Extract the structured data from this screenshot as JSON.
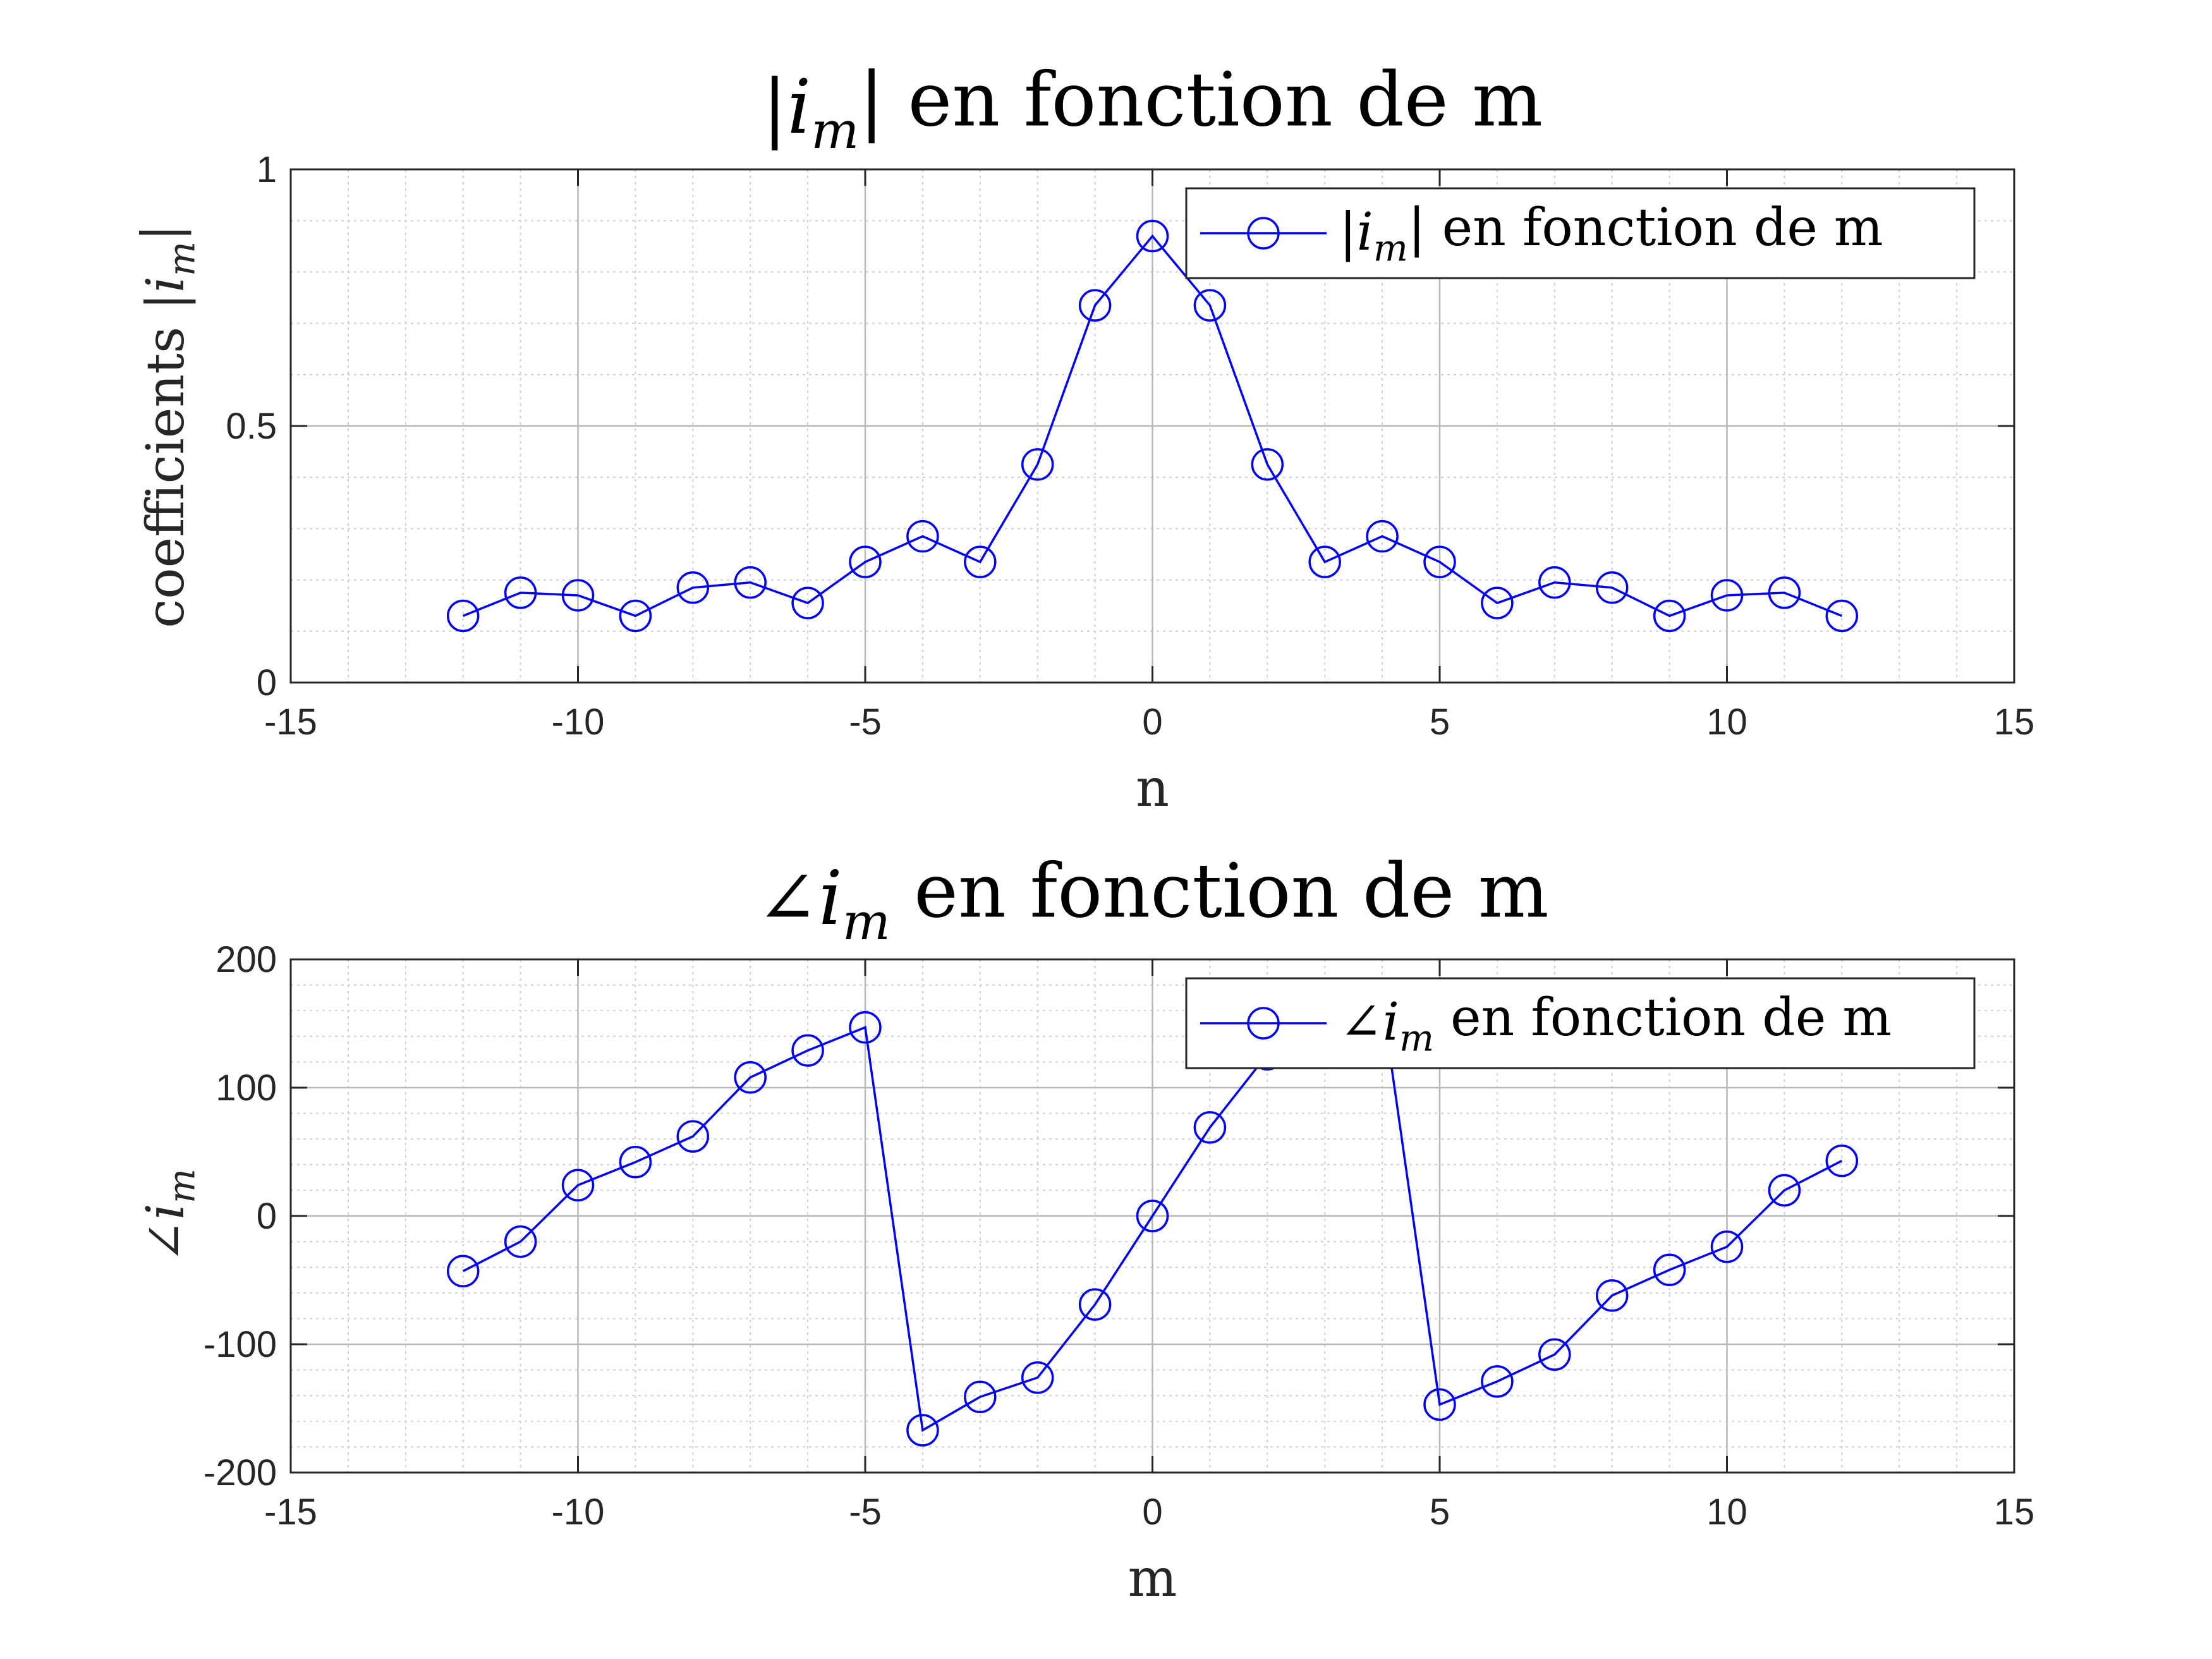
{
  "chart_data": [
    {
      "type": "line",
      "title": "|i_m| en fonction de m",
      "title_parts": {
        "pre": "|",
        "var": "i",
        "sub": "m",
        "post": "| en fonction de m"
      },
      "xlabel": "n",
      "ylabel": "coefficients |i_m|",
      "ylabel_parts": {
        "pre": "coefficients |",
        "var": "i",
        "sub": "m",
        "post": "|"
      },
      "xlim": [
        -15,
        15
      ],
      "ylim": [
        0,
        1
      ],
      "xticks": [
        -15,
        -10,
        -5,
        0,
        5,
        10,
        15
      ],
      "yticks": [
        0,
        0.5,
        1
      ],
      "xtick_labels": [
        "-15",
        "-10",
        "-5",
        "0",
        "5",
        "10",
        "15"
      ],
      "ytick_labels": [
        "0",
        "0.5",
        "1"
      ],
      "grid": true,
      "minor_grid": true,
      "legend_position": "top-right",
      "series": [
        {
          "name": "|i_m| en fonction de m",
          "legend_parts": {
            "pre": "|",
            "var": "i",
            "sub": "m",
            "post": "| en fonction de m"
          },
          "color": "#0000ff",
          "marker": "circle",
          "x": [
            -12,
            -11,
            -10,
            -9,
            -8,
            -7,
            -6,
            -5,
            -4,
            -3,
            -2,
            -1,
            0,
            1,
            2,
            3,
            4,
            5,
            6,
            7,
            8,
            9,
            10,
            11,
            12
          ],
          "y": [
            0.13,
            0.175,
            0.17,
            0.13,
            0.185,
            0.195,
            0.155,
            0.235,
            0.285,
            0.235,
            0.425,
            0.735,
            0.87,
            0.735,
            0.425,
            0.235,
            0.285,
            0.235,
            0.155,
            0.195,
            0.185,
            0.13,
            0.17,
            0.175,
            0.13
          ]
        }
      ]
    },
    {
      "type": "line",
      "title": "∠i_m en fonction de m",
      "title_parts": {
        "pre": "∠",
        "var": "i",
        "sub": "m",
        "post": " en fonction de m"
      },
      "xlabel": "m",
      "ylabel": "∠i_m",
      "ylabel_parts": {
        "pre": "∠",
        "var": "i",
        "sub": "m",
        "post": ""
      },
      "xlim": [
        -15,
        15
      ],
      "ylim": [
        -200,
        200
      ],
      "xticks": [
        -15,
        -10,
        -5,
        0,
        5,
        10,
        15
      ],
      "yticks": [
        -200,
        -100,
        0,
        100,
        200
      ],
      "xtick_labels": [
        "-15",
        "-10",
        "-5",
        "0",
        "5",
        "10",
        "15"
      ],
      "ytick_labels": [
        "-200",
        "-100",
        "0",
        "100",
        "200"
      ],
      "grid": true,
      "minor_grid": true,
      "legend_position": "top-right",
      "series": [
        {
          "name": "∠i_m en fonction de m",
          "legend_parts": {
            "pre": "∠",
            "var": "i",
            "sub": "m",
            "post": " en fonction de m"
          },
          "color": "#0000ff",
          "marker": "circle",
          "x": [
            -12,
            -11,
            -10,
            -9,
            -8,
            -7,
            -6,
            -5,
            -4,
            -3,
            -2,
            -1,
            0,
            1,
            2,
            3,
            4,
            5,
            6,
            7,
            8,
            9,
            10,
            11,
            12
          ],
          "y": [
            -43,
            -20,
            24,
            42,
            62,
            108,
            129,
            147,
            -167,
            -141,
            -126,
            -69,
            0,
            69,
            126,
            141,
            167,
            -147,
            -129,
            -108,
            -62,
            -42,
            -24,
            20,
            43
          ]
        }
      ]
    }
  ]
}
